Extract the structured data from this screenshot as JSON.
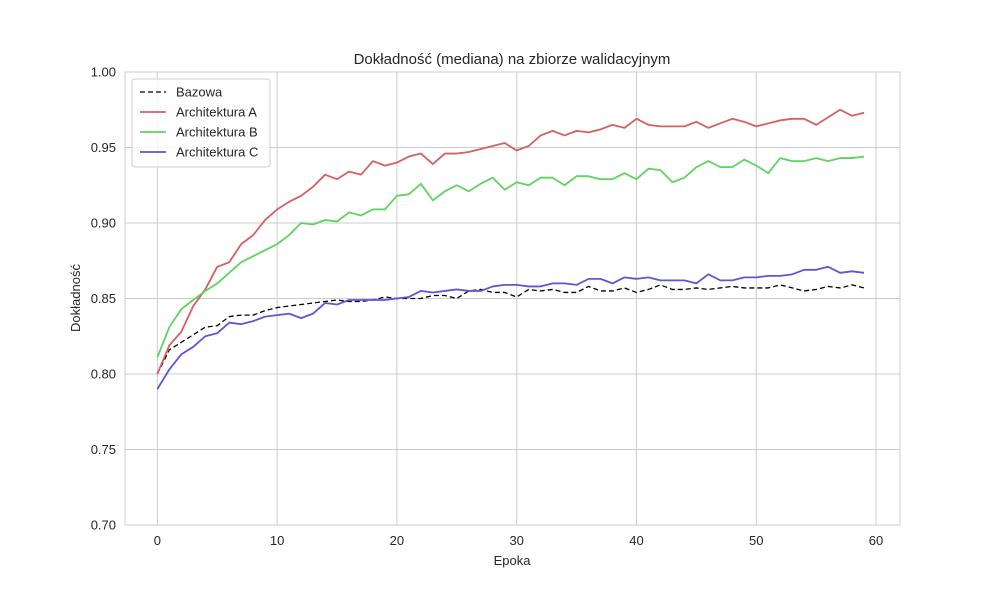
{
  "chart_data": {
    "type": "line",
    "title": "Dokładność (mediana) na zbiorze walidacyjnym",
    "xlabel": "Epoka",
    "ylabel": "Dokładność",
    "xlim": [
      -2.7,
      62
    ],
    "ylim": [
      0.7,
      1.0
    ],
    "xticks": [
      0,
      10,
      20,
      30,
      40,
      50,
      60
    ],
    "xtick_labels": [
      "0",
      "10",
      "20",
      "30",
      "40",
      "50",
      "60"
    ],
    "yticks": [
      0.7,
      0.75,
      0.8,
      0.85,
      0.9,
      0.95,
      1.0
    ],
    "ytick_labels": [
      "0.70",
      "0.75",
      "0.80",
      "0.85",
      "0.90",
      "0.95",
      "1.00"
    ],
    "grid": true,
    "legend_position": "top-left",
    "x": [
      0,
      1,
      2,
      3,
      4,
      5,
      6,
      7,
      8,
      9,
      10,
      11,
      12,
      13,
      14,
      15,
      16,
      17,
      18,
      19,
      20,
      21,
      22,
      23,
      24,
      25,
      26,
      27,
      28,
      29,
      30,
      31,
      32,
      33,
      34,
      35,
      36,
      37,
      38,
      39,
      40,
      41,
      42,
      43,
      44,
      45,
      46,
      47,
      48,
      49,
      50,
      51,
      52,
      53,
      54,
      55,
      56,
      57,
      58,
      59
    ],
    "series": [
      {
        "name": "Bazowa",
        "color": "#000000",
        "dashed": true,
        "values": [
          0.8,
          0.816,
          0.821,
          0.826,
          0.831,
          0.832,
          0.838,
          0.839,
          0.839,
          0.842,
          0.844,
          0.845,
          0.846,
          0.847,
          0.848,
          0.849,
          0.848,
          0.848,
          0.849,
          0.851,
          0.85,
          0.85,
          0.85,
          0.852,
          0.852,
          0.85,
          0.855,
          0.856,
          0.854,
          0.854,
          0.851,
          0.856,
          0.855,
          0.856,
          0.854,
          0.854,
          0.858,
          0.855,
          0.855,
          0.857,
          0.854,
          0.856,
          0.859,
          0.856,
          0.856,
          0.857,
          0.856,
          0.857,
          0.858,
          0.857,
          0.857,
          0.857,
          0.859,
          0.857,
          0.855,
          0.856,
          0.858,
          0.857,
          0.859,
          0.857
        ]
      },
      {
        "name": "Architektura A",
        "color": "#d65f5f",
        "dashed": false,
        "values": [
          0.8,
          0.819,
          0.828,
          0.845,
          0.856,
          0.871,
          0.874,
          0.886,
          0.892,
          0.902,
          0.909,
          0.914,
          0.918,
          0.924,
          0.932,
          0.929,
          0.934,
          0.932,
          0.941,
          0.938,
          0.94,
          0.944,
          0.946,
          0.939,
          0.946,
          0.946,
          0.947,
          0.949,
          0.951,
          0.953,
          0.948,
          0.951,
          0.958,
          0.961,
          0.958,
          0.961,
          0.96,
          0.962,
          0.965,
          0.963,
          0.969,
          0.965,
          0.964,
          0.964,
          0.964,
          0.967,
          0.963,
          0.966,
          0.969,
          0.967,
          0.964,
          0.966,
          0.968,
          0.969,
          0.969,
          0.965,
          0.97,
          0.975,
          0.971,
          0.973
        ]
      },
      {
        "name": "Architektura B",
        "color": "#5fd35f",
        "dashed": false,
        "values": [
          0.811,
          0.831,
          0.843,
          0.849,
          0.855,
          0.86,
          0.867,
          0.874,
          0.878,
          0.882,
          0.886,
          0.892,
          0.9,
          0.899,
          0.902,
          0.901,
          0.907,
          0.905,
          0.909,
          0.909,
          0.918,
          0.919,
          0.926,
          0.915,
          0.921,
          0.925,
          0.921,
          0.926,
          0.93,
          0.922,
          0.927,
          0.925,
          0.93,
          0.93,
          0.925,
          0.931,
          0.931,
          0.929,
          0.929,
          0.933,
          0.929,
          0.936,
          0.935,
          0.927,
          0.93,
          0.937,
          0.941,
          0.937,
          0.937,
          0.942,
          0.938,
          0.933,
          0.943,
          0.941,
          0.941,
          0.943,
          0.941,
          0.943,
          0.943,
          0.944
        ]
      },
      {
        "name": "Architektura C",
        "color": "#5f55d6",
        "dashed": false,
        "values": [
          0.79,
          0.803,
          0.813,
          0.818,
          0.825,
          0.827,
          0.834,
          0.833,
          0.835,
          0.838,
          0.839,
          0.84,
          0.837,
          0.84,
          0.847,
          0.846,
          0.849,
          0.849,
          0.849,
          0.849,
          0.85,
          0.851,
          0.855,
          0.854,
          0.855,
          0.856,
          0.855,
          0.855,
          0.858,
          0.859,
          0.859,
          0.858,
          0.858,
          0.86,
          0.86,
          0.859,
          0.863,
          0.863,
          0.86,
          0.864,
          0.863,
          0.864,
          0.862,
          0.862,
          0.862,
          0.86,
          0.866,
          0.862,
          0.862,
          0.864,
          0.864,
          0.865,
          0.865,
          0.866,
          0.869,
          0.869,
          0.871,
          0.867,
          0.868,
          0.867
        ]
      }
    ]
  }
}
